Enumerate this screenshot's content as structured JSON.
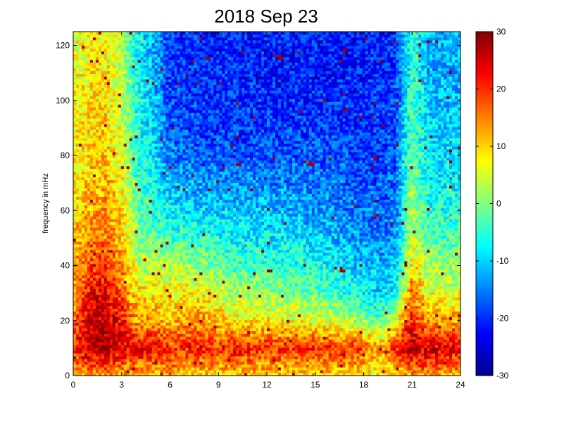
{
  "chart_data": {
    "type": "heatmap",
    "title": "2018 Sep 23",
    "xlabel": "",
    "ylabel": "frequency in mHz",
    "xlim": [
      0,
      24
    ],
    "ylim": [
      0,
      125
    ],
    "xticks": [
      0,
      3,
      6,
      9,
      12,
      15,
      18,
      21,
      24
    ],
    "yticks": [
      0,
      20,
      40,
      60,
      80,
      100,
      120
    ],
    "colorbar": {
      "range": [
        -30,
        30
      ],
      "ticks": [
        30,
        20,
        10,
        0,
        -10,
        -20,
        -30
      ],
      "colormap": "jet"
    },
    "x_hours": [
      0,
      1,
      2,
      3,
      4,
      5,
      6,
      7,
      8,
      9,
      10,
      11,
      12,
      13,
      14,
      15,
      16,
      17,
      18,
      19,
      20,
      21,
      22,
      23,
      24
    ],
    "y_mhz": [
      0,
      10,
      20,
      30,
      40,
      50,
      60,
      70,
      80,
      90,
      100,
      110,
      120,
      125
    ],
    "z_values": [
      [
        10,
        13,
        13,
        12,
        10,
        10,
        12,
        10,
        10,
        10,
        10,
        10,
        10,
        10,
        9,
        10,
        9,
        9,
        7,
        8,
        11,
        13,
        13,
        12,
        12
      ],
      [
        20,
        27,
        28,
        23,
        24,
        24,
        19,
        20,
        21,
        19,
        22,
        21,
        19,
        20,
        21,
        20,
        20,
        20,
        18,
        11,
        20,
        27,
        25,
        24,
        24
      ],
      [
        16,
        26,
        26,
        22,
        13,
        13,
        11,
        13,
        13,
        11,
        8,
        8,
        8,
        7,
        7,
        6,
        5,
        3,
        1,
        -2,
        5,
        22,
        13,
        13,
        13
      ],
      [
        13,
        22,
        24,
        17,
        9,
        8,
        7,
        8,
        7,
        4,
        3,
        2,
        1,
        0,
        -1,
        -2,
        -3,
        -5,
        -7,
        -9,
        -6,
        16,
        6,
        5,
        5
      ],
      [
        12,
        18,
        20,
        14,
        4,
        4,
        4,
        2,
        1,
        -1,
        -3,
        -4,
        -4,
        -5,
        -5,
        -6,
        -7,
        -9,
        -11,
        -12,
        -10,
        10,
        2,
        1,
        1
      ],
      [
        10,
        15,
        15,
        11,
        0,
        -1,
        -4,
        -4,
        -5,
        -6,
        -7,
        -8,
        -8,
        -8,
        -9,
        -10,
        -11,
        -13,
        -14,
        -15,
        -14,
        5,
        -2,
        -3,
        -3
      ],
      [
        9,
        13,
        14,
        9,
        -2,
        -5,
        -8,
        -9,
        -10,
        -10,
        -10,
        -11,
        -11,
        -12,
        -12,
        -13,
        -13,
        -15,
        -16,
        -16,
        -15,
        2,
        -5,
        -6,
        -6
      ],
      [
        8,
        11,
        12,
        7,
        -4,
        -7,
        -12,
        -13,
        -13,
        -14,
        -14,
        -14,
        -15,
        -15,
        -14,
        -15,
        -16,
        -16,
        -17,
        -17,
        -16,
        0,
        -7,
        -8,
        -8
      ],
      [
        8,
        10,
        11,
        6,
        -5,
        -9,
        -15,
        -16,
        -17,
        -17,
        -18,
        -18,
        -18,
        -17,
        -17,
        -17,
        -18,
        -18,
        -19,
        -18,
        -17,
        -1,
        -9,
        -9,
        -9
      ],
      [
        7,
        9,
        10,
        5,
        -6,
        -10,
        -17,
        -18,
        -19,
        -19,
        -19,
        -19,
        -19,
        -19,
        -19,
        -19,
        -19,
        -19,
        -20,
        -19,
        -18,
        -2,
        -10,
        -10,
        -10
      ],
      [
        7,
        9,
        9,
        4,
        -6,
        -11,
        -18,
        -19,
        -19,
        -20,
        -20,
        -20,
        -20,
        -20,
        -20,
        -20,
        -20,
        -20,
        -20,
        -20,
        -19,
        -3,
        -11,
        -11,
        -11
      ],
      [
        6,
        8,
        9,
        3,
        -7,
        -12,
        -19,
        -20,
        -20,
        -20,
        -20,
        -21,
        -21,
        -21,
        -21,
        -21,
        -21,
        -21,
        -21,
        -21,
        -19,
        -4,
        -12,
        -12,
        -12
      ],
      [
        6,
        8,
        8,
        3,
        -7,
        -12,
        -19,
        -20,
        -20,
        -21,
        -21,
        -21,
        -21,
        -21,
        -21,
        -21,
        -21,
        -21,
        -21,
        -21,
        -20,
        -4,
        -12,
        -12,
        -12
      ],
      [
        6,
        8,
        8,
        3,
        -7,
        -12,
        -19,
        -20,
        -20,
        -21,
        -21,
        -21,
        -21,
        -21,
        -21,
        -21,
        -21,
        -21,
        -21,
        -21,
        -20,
        -4,
        -12,
        -12,
        -12
      ]
    ]
  }
}
